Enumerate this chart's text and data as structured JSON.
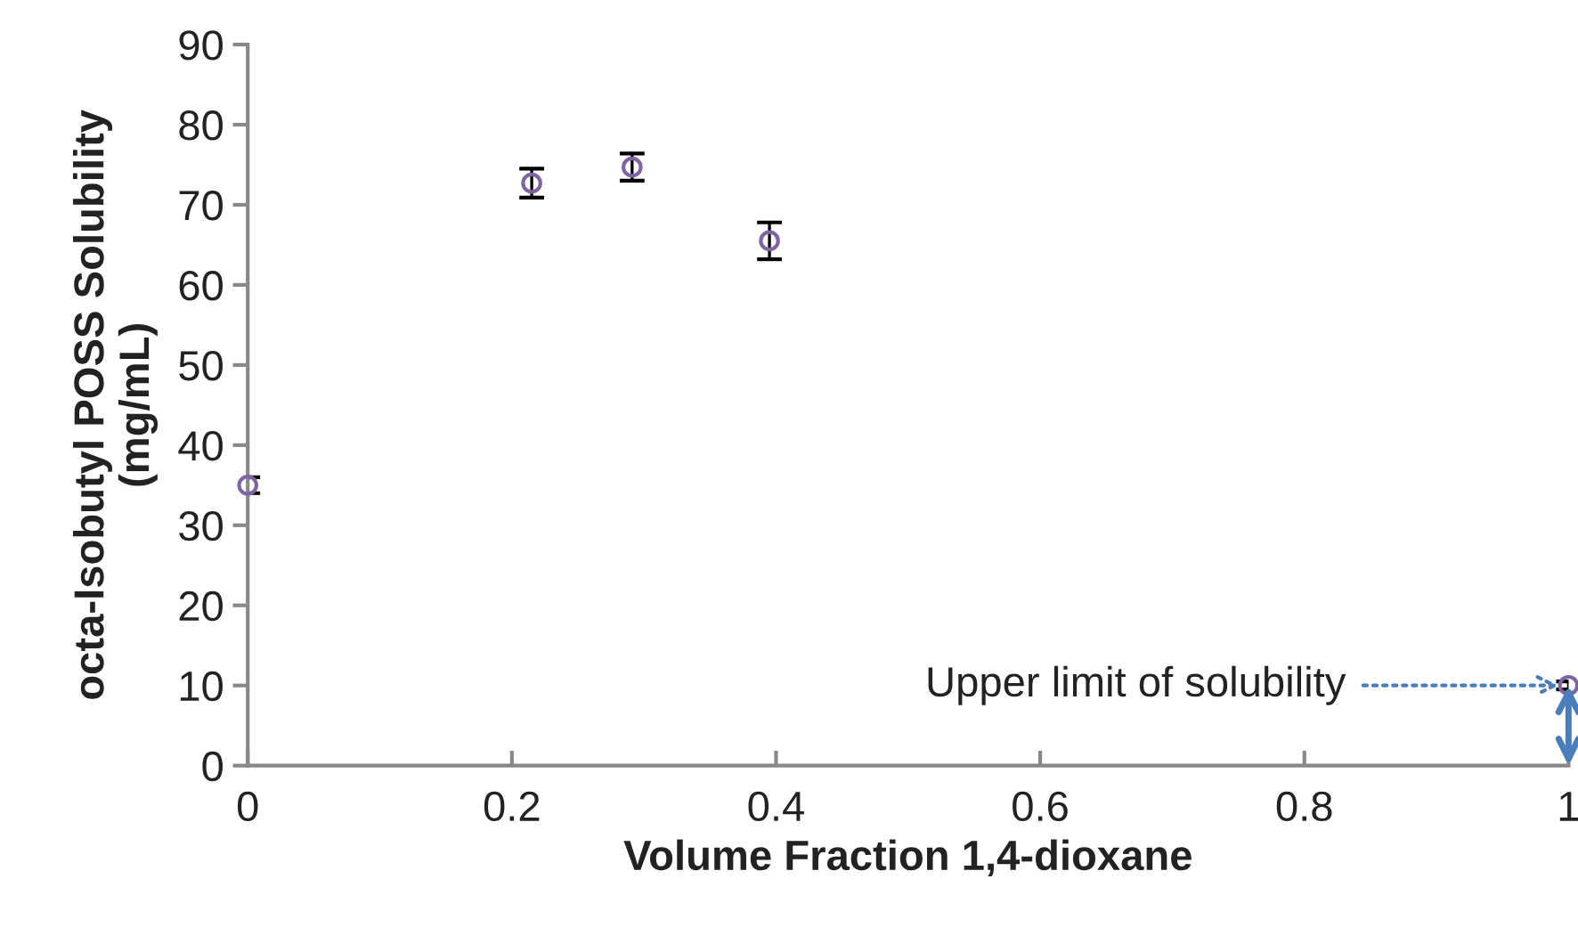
{
  "chart_data": {
    "type": "scatter",
    "xlabel": "Volume Fraction 1,4-dioxane",
    "ylabel": "octa-Isobutyl POSS Solubility\n(mg/mL)",
    "x": [
      0,
      0.215,
      0.291,
      0.395,
      1
    ],
    "series": [
      {
        "color": "#8064a2",
        "values": [
          35,
          72.7,
          74.7,
          65.5,
          10
        ],
        "errors": [
          1,
          1.8,
          1.7,
          2.3,
          0.5
        ]
      }
    ],
    "xlim": [
      0,
      1
    ],
    "ylim": [
      0,
      90
    ],
    "xticks": [
      0,
      0.2,
      0.4,
      0.6,
      0.8,
      1
    ],
    "yticks": [
      0,
      10,
      20,
      30,
      40,
      50,
      60,
      70,
      80,
      90
    ],
    "grid": false,
    "marker": "circle",
    "annotations": [
      {
        "text": "Upper limit of solubility",
        "x": 1,
        "y": 10
      }
    ]
  }
}
